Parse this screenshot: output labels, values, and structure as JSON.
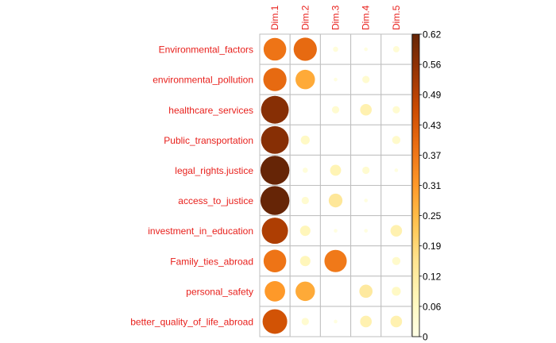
{
  "chart_data": {
    "type": "heatmap",
    "rows": [
      "Environmental_factors",
      "environmental_pollution",
      "healthcare_services",
      "Public_transportation",
      "legal_rights.justice",
      "access_to_justice",
      "investment_in_education",
      "Family_ties_abroad",
      "personal_safety",
      "better_quality_of_life_abroad"
    ],
    "columns": [
      "Dim.1",
      "Dim.2",
      "Dim.3",
      "Dim.4",
      "Dim.5"
    ],
    "values": [
      [
        0.38,
        0.4,
        0.02,
        0.01,
        0.03
      ],
      [
        0.4,
        0.28,
        0.01,
        0.04,
        0.0
      ],
      [
        0.57,
        0.0,
        0.04,
        0.1,
        0.04
      ],
      [
        0.57,
        0.06,
        0.0,
        0.0,
        0.05
      ],
      [
        0.62,
        0.02,
        0.09,
        0.04,
        0.01
      ],
      [
        0.62,
        0.04,
        0.14,
        0.01,
        0.0
      ],
      [
        0.51,
        0.08,
        0.01,
        0.01,
        0.1
      ],
      [
        0.38,
        0.08,
        0.37,
        0.0,
        0.05
      ],
      [
        0.31,
        0.28,
        0.0,
        0.13,
        0.06
      ],
      [
        0.45,
        0.04,
        0.01,
        0.1,
        0.1
      ]
    ],
    "legend": {
      "min": 0,
      "max": 0.62,
      "ticks": [
        "0.62",
        "0.56",
        "0.49",
        "0.43",
        "0.37",
        "0.31",
        "0.25",
        "0.19",
        "0.12",
        "0.06",
        "0"
      ]
    },
    "colors": {
      "labels": "#e8201c",
      "grid": "#bfbfbf",
      "scale": [
        "#ffffe5",
        "#fff7bc",
        "#fee391",
        "#fec44f",
        "#fe9929",
        "#ec7014",
        "#cc4c02",
        "#993404",
        "#662506"
      ]
    },
    "legend_position": "right"
  }
}
